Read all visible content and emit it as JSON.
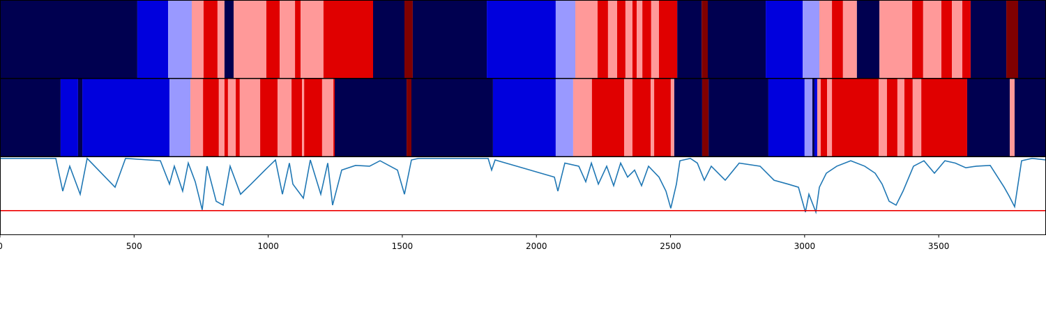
{
  "chart_data": [
    {
      "type": "segments",
      "xlim": [
        0,
        3900
      ],
      "edges": [
        0,
        512,
        627,
        715,
        759,
        811,
        837,
        871,
        993,
        1043,
        1100,
        1121,
        1206,
        1391,
        1508,
        1539,
        1815,
        2072,
        2145,
        2228,
        2267,
        2301,
        2332,
        2358,
        2374,
        2395,
        2428,
        2457,
        2525,
        2616,
        2639,
        2855,
        2993,
        3055,
        3102,
        3143,
        3195,
        3279,
        3401,
        3442,
        3510,
        3549,
        3588,
        3619,
        3752,
        3796,
        3900
      ],
      "colors": [
        "#000050",
        "#0000dd",
        "#9999ff",
        "#ff9999",
        "#e00000",
        "#ff9999",
        "#000050",
        "#ff9999",
        "#e00000",
        "#ff9999",
        "#e00000",
        "#ff9999",
        "#e00000",
        "#000050",
        "#800000",
        "#000050",
        "#0000dd",
        "#9999ff",
        "#ff9999",
        "#e00000",
        "#ff9999",
        "#e00000",
        "#ff9999",
        "#e00000",
        "#ff9999",
        "#e00000",
        "#ff9999",
        "#e00000",
        "#000050",
        "#800000",
        "#000050",
        "#0000dd",
        "#9999ff",
        "#ff9999",
        "#e00000",
        "#ff9999",
        "#000050",
        "#ff9999",
        "#e00000",
        "#ff9999",
        "#e00000",
        "#ff9999",
        "#e00000",
        "#000050",
        "#800000",
        "#000050"
      ]
    },
    {
      "type": "segments",
      "xlim": [
        0,
        3900
      ],
      "edges": [
        0,
        226,
        291,
        307,
        632,
        710,
        757,
        816,
        837,
        850,
        879,
        894,
        970,
        1035,
        1087,
        1126,
        1134,
        1201,
        1243,
        1248,
        1516,
        1534,
        1838,
        2072,
        2137,
        2207,
        2327,
        2358,
        2426,
        2439,
        2501,
        2514,
        2618,
        2642,
        2865,
        3000,
        3029,
        3037,
        3047,
        3060,
        3084,
        3102,
        3276,
        3307,
        3346,
        3372,
        3403,
        3435,
        3606,
        3765,
        3783,
        3900
      ],
      "colors": [
        "#000050",
        "#0000dd",
        "#000050",
        "#0000dd",
        "#9999ff",
        "#ff9999",
        "#e00000",
        "#ff9999",
        "#e00000",
        "#ff9999",
        "#e00000",
        "#ff9999",
        "#e00000",
        "#ff9999",
        "#e00000",
        "#ff9999",
        "#e00000",
        "#ff9999",
        "#e00000",
        "#000050",
        "#800000",
        "#000050",
        "#0000dd",
        "#9999ff",
        "#ff9999",
        "#e00000",
        "#ff9999",
        "#e00000",
        "#ff9999",
        "#e00000",
        "#ff9999",
        "#000050",
        "#800000",
        "#000050",
        "#0000dd",
        "#9999ff",
        "#000050",
        "#0000dd",
        "#ff9999",
        "#e00000",
        "#ff9999",
        "#e00000",
        "#ff9999",
        "#e00000",
        "#ff9999",
        "#e00000",
        "#ff9999",
        "#e00000",
        "#000050",
        "#ff9999",
        "#000050"
      ]
    },
    {
      "type": "line",
      "xlim": [
        0,
        3900
      ],
      "ylim": [
        0,
        1
      ],
      "xticks": [
        0,
        500,
        1000,
        1500,
        2000,
        2500,
        3000,
        3500
      ],
      "color": "#1f77b4",
      "threshold": 0.31,
      "threshold_color": "#ee0000",
      "x": [
        0,
        208,
        234,
        260,
        299,
        325,
        429,
        468,
        598,
        632,
        650,
        681,
        702,
        728,
        754,
        772,
        806,
        832,
        858,
        897,
        936,
        988,
        1027,
        1053,
        1079,
        1092,
        1131,
        1157,
        1196,
        1222,
        1240,
        1274,
        1326,
        1378,
        1417,
        1482,
        1508,
        1521,
        1534,
        1560,
        1820,
        1833,
        1846,
        2067,
        2080,
        2106,
        2158,
        2184,
        2205,
        2231,
        2262,
        2288,
        2314,
        2340,
        2366,
        2392,
        2418,
        2457,
        2483,
        2501,
        2522,
        2535,
        2574,
        2600,
        2626,
        2652,
        2704,
        2756,
        2834,
        2886,
        2938,
        2977,
        3003,
        3016,
        3042,
        3055,
        3081,
        3120,
        3172,
        3224,
        3263,
        3289,
        3315,
        3341,
        3367,
        3406,
        3445,
        3484,
        3523,
        3562,
        3601,
        3640,
        3692,
        3744,
        3762,
        3783,
        3809,
        3848,
        3900
      ],
      "values": [
        0.98,
        0.98,
        0.56,
        0.88,
        0.52,
        0.98,
        0.61,
        0.98,
        0.95,
        0.65,
        0.88,
        0.56,
        0.92,
        0.68,
        0.32,
        0.88,
        0.43,
        0.38,
        0.88,
        0.52,
        0.65,
        0.83,
        0.96,
        0.52,
        0.92,
        0.65,
        0.47,
        0.96,
        0.52,
        0.92,
        0.38,
        0.83,
        0.89,
        0.88,
        0.95,
        0.83,
        0.52,
        0.74,
        0.96,
        0.98,
        0.98,
        0.83,
        0.96,
        0.74,
        0.56,
        0.92,
        0.88,
        0.68,
        0.92,
        0.65,
        0.88,
        0.63,
        0.92,
        0.74,
        0.83,
        0.63,
        0.88,
        0.74,
        0.56,
        0.34,
        0.65,
        0.95,
        0.98,
        0.92,
        0.7,
        0.88,
        0.7,
        0.92,
        0.88,
        0.7,
        0.65,
        0.61,
        0.29,
        0.52,
        0.29,
        0.61,
        0.79,
        0.88,
        0.95,
        0.88,
        0.79,
        0.65,
        0.43,
        0.38,
        0.56,
        0.88,
        0.95,
        0.79,
        0.95,
        0.92,
        0.86,
        0.88,
        0.89,
        0.61,
        0.5,
        0.36,
        0.95,
        0.98,
        0.96
      ]
    }
  ]
}
